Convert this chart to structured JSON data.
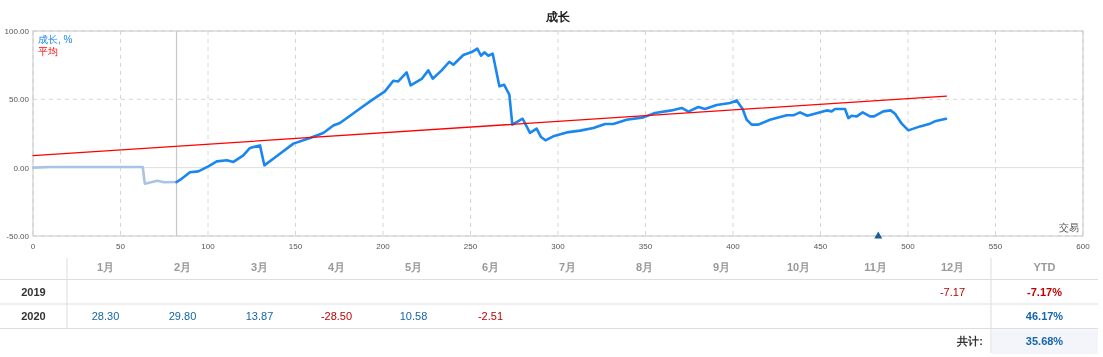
{
  "chart_data": [
    {
      "type": "line",
      "title": "成长",
      "xlabel": "交易",
      "xlim": [
        0,
        600
      ],
      "xticks": [
        0,
        50,
        100,
        150,
        200,
        250,
        300,
        350,
        400,
        450,
        500,
        550,
        600
      ],
      "ylim": [
        -50,
        100
      ],
      "yticks": [
        {
          "value": -50,
          "label": "-50.00"
        },
        {
          "value": 0,
          "label": "0.00"
        },
        {
          "value": 50,
          "label": "50.00"
        },
        {
          "value": 100,
          "label": "100.00"
        }
      ],
      "grid": true,
      "legend": "top left",
      "ref_lines": [
        {
          "axis": "x",
          "value": 82,
          "color": "#c8c8c8"
        }
      ],
      "series": [
        {
          "color": "#a9c4e2",
          "x": [
            0,
            10,
            30,
            62.7,
            63.9,
            71,
            75,
            82
          ],
          "values": [
            0,
            0.5,
            0.5,
            0.5,
            -11.7,
            -9.5,
            -10.7,
            -10.5
          ]
        },
        {
          "name": "成长, %",
          "color": "#1a87f0",
          "x": [
            82,
            84,
            89.7,
            94.5,
            100.2,
            105,
            110.8,
            114.5,
            120.2,
            124,
            129.7,
            132.2,
            139.2,
            148.8,
            158.3,
            165.9,
            171.6,
            175.4,
            180.2,
            185.9,
            192.6,
            198.3,
            201.1,
            205.9,
            208.7,
            213.5,
            215.8,
            222.1,
            225.9,
            228.4,
            233.5,
            237.9,
            240.2,
            245.9,
            250.7,
            253.9,
            256,
            257.9,
            260.2,
            262.7,
            266.5,
            269.2,
            272.2,
            273.9,
            279.8,
            284,
            287.8,
            290.3,
            292.8,
            297.3,
            305,
            312.6,
            320.2,
            326.9,
            331.6,
            339.2,
            348.8,
            355.4,
            364.9,
            370.7,
            374.5,
            380.2,
            384,
            390.7,
            398.3,
            402.1,
            405.5,
            407.8,
            410.7,
            414.5,
            421.1,
            430.7,
            434.5,
            438.3,
            442.5,
            453.5,
            456.4,
            458.3,
            464,
            465.9,
            467.8,
            470.7,
            474.1,
            478.3,
            480.6,
            485.9,
            490.1,
            492.6,
            496.4,
            500.2,
            506.9,
            512.6,
            515.4,
            521.7
          ],
          "values": [
            -10.5,
            -9,
            -3.4,
            -2.7,
            1,
            4.6,
            5.4,
            4.2,
            9,
            14.4,
            16.3,
            1.7,
            8.3,
            17.6,
            21.7,
            25.4,
            30.9,
            32.7,
            37.1,
            42.4,
            48.5,
            53.4,
            55.8,
            63.6,
            63.1,
            69.7,
            60.2,
            64.9,
            71.2,
            65.1,
            71.2,
            77.5,
            75.3,
            82.4,
            84.6,
            87.1,
            81.9,
            84.4,
            81.9,
            83.4,
            59.5,
            60.7,
            53.4,
            31.5,
            35.8,
            25.4,
            28.5,
            22.4,
            20,
            22.9,
            25.8,
            27.1,
            29,
            32,
            32,
            35.1,
            36.8,
            40,
            41.9,
            43.7,
            41,
            44.4,
            42.9,
            45.9,
            47.3,
            49.2,
            42.9,
            35.1,
            31.5,
            31.5,
            35.1,
            38.3,
            38.3,
            40.5,
            38,
            41.9,
            41.2,
            42.9,
            42.9,
            36.3,
            38,
            37.5,
            40.5,
            37.5,
            37.5,
            41.2,
            41.9,
            39.5,
            32.2,
            27.3,
            30.2,
            32.2,
            33.9,
            35.8
          ]
        },
        {
          "name": "平均",
          "color": "#ff0000",
          "x": [
            0,
            522
          ],
          "values": [
            8.8,
            52.4
          ]
        },
        {
          "type": "scatter",
          "marker": "triangle",
          "color": "#1c5e9c",
          "x": [
            483
          ],
          "values": [
            -50
          ]
        }
      ]
    },
    {
      "type": "heatmap",
      "categories": [
        "1月",
        "2月",
        "3月",
        "4月",
        "5月",
        "6月",
        "7月",
        "8月",
        "9月",
        "10月",
        "11月",
        "12月",
        "YTD"
      ],
      "y_categories": [
        "2019",
        "2020"
      ],
      "cells": [
        [
          null,
          null,
          null,
          null,
          null,
          null,
          null,
          null,
          null,
          null,
          null,
          -7.17,
          -7.17
        ],
        [
          28.3,
          29.8,
          13.87,
          -28.5,
          10.58,
          -2.51,
          null,
          null,
          null,
          null,
          null,
          null,
          46.17
        ]
      ],
      "cell_labels": [
        [
          null,
          null,
          null,
          null,
          null,
          null,
          null,
          null,
          null,
          null,
          null,
          "-7.17",
          "-7.17%"
        ],
        [
          "28.30",
          "29.80",
          "13.87",
          "-28.50",
          "10.58",
          "-2.51",
          null,
          null,
          null,
          null,
          null,
          null,
          "46.17%"
        ]
      ],
      "annotations": [
        "共计:",
        "35.68%"
      ]
    }
  ]
}
